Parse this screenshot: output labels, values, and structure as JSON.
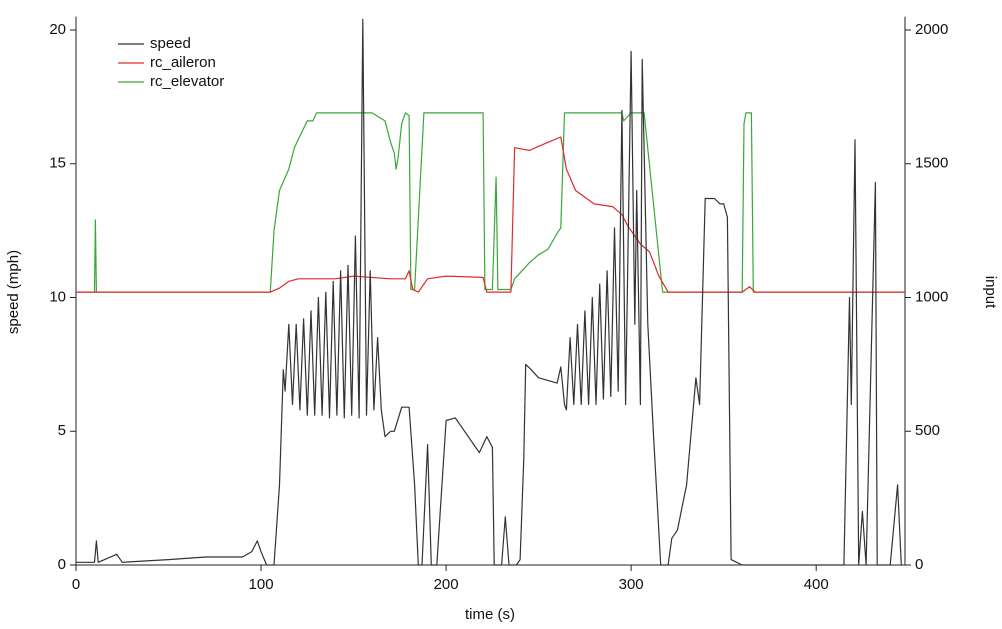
{
  "chart_data": {
    "type": "line",
    "xlabel": "time (s)",
    "ylabel": "speed (mph)",
    "y2label": "input",
    "xlim": [
      0,
      448
    ],
    "xticks": [
      0,
      100,
      200,
      300,
      400
    ],
    "ylim": [
      0,
      20.5
    ],
    "yticks": [
      0,
      5,
      10,
      15,
      20
    ],
    "y2lim": [
      0,
      2050
    ],
    "y2ticks": [
      0,
      500,
      1000,
      1500,
      2000
    ],
    "legend": "upper left",
    "series": [
      {
        "name": "speed",
        "color": "#333333",
        "x": [
          0,
          10,
          11,
          12,
          22,
          25,
          50,
          70,
          90,
          95,
          98,
          100,
          103,
          107,
          110,
          112,
          113,
          115,
          117,
          119,
          121,
          123,
          125,
          127,
          129,
          131,
          133,
          135,
          137,
          139,
          141,
          143,
          145,
          147,
          149,
          151,
          153,
          155,
          157,
          159,
          161,
          163,
          165,
          167,
          170,
          172,
          176,
          180,
          183,
          185,
          187,
          190,
          192,
          195,
          200,
          205,
          210,
          215,
          218,
          222,
          225,
          226,
          230,
          232,
          234,
          238,
          240,
          242,
          243,
          246,
          250,
          255,
          260,
          262,
          264,
          265,
          267,
          269,
          271,
          273,
          275,
          277,
          279,
          281,
          283,
          285,
          287,
          289,
          291,
          293,
          295,
          297,
          300,
          302,
          303,
          305,
          306,
          309,
          312,
          316,
          320,
          322,
          325,
          330,
          335,
          337,
          340,
          345,
          348,
          350,
          352,
          354,
          360,
          415,
          418,
          419,
          421,
          423,
          425,
          427,
          432,
          433,
          440,
          444,
          446
        ],
        "values": [
          0.1,
          0.1,
          0.9,
          0.1,
          0.4,
          0.1,
          0.2,
          0.3,
          0.3,
          0.5,
          0.9,
          0.5,
          0,
          0,
          3,
          7.3,
          6.5,
          9,
          6,
          9,
          5.8,
          9.2,
          5.6,
          9.5,
          5.6,
          10,
          5.6,
          10.2,
          5.5,
          10.6,
          5.6,
          11,
          5.5,
          11.2,
          5.6,
          12.3,
          5.5,
          20.4,
          5.6,
          11,
          5.8,
          8.5,
          5.8,
          4.8,
          5,
          5,
          5.9,
          5.9,
          3,
          0,
          0,
          4.5,
          0,
          0,
          5.4,
          5.5,
          5,
          4.5,
          4.2,
          4.8,
          4.4,
          0,
          0,
          1.8,
          0,
          0,
          0.2,
          4,
          7.5,
          7.3,
          7,
          6.9,
          6.8,
          7.4,
          6,
          5.8,
          8.5,
          6,
          9,
          6,
          9.5,
          6,
          10,
          6,
          10.5,
          6.2,
          11,
          6.3,
          12.6,
          6.5,
          17,
          6,
          19.2,
          9,
          14,
          6,
          18.9,
          9,
          5,
          0,
          0,
          1,
          1.3,
          3,
          7,
          6,
          13.7,
          13.7,
          13.5,
          13.5,
          13,
          0.2,
          0,
          0,
          10,
          6,
          15.9,
          0,
          2,
          0,
          14.3,
          0,
          0,
          3,
          0
        ]
      },
      {
        "name": "rc_aileron",
        "color": "#dd2c2c",
        "x": [
          0,
          105,
          110,
          115,
          120,
          140,
          150,
          170,
          178,
          180,
          182,
          185,
          190,
          200,
          220,
          222,
          235,
          237,
          245,
          255,
          262,
          265,
          270,
          280,
          290,
          295,
          298,
          302,
          305,
          310,
          315,
          320,
          360,
          364,
          367,
          448
        ],
        "values": [
          1020,
          1020,
          1035,
          1060,
          1070,
          1070,
          1080,
          1070,
          1070,
          1100,
          1030,
          1020,
          1070,
          1080,
          1075,
          1020,
          1020,
          1560,
          1550,
          1580,
          1600,
          1480,
          1400,
          1350,
          1340,
          1310,
          1270,
          1230,
          1200,
          1170,
          1080,
          1020,
          1020,
          1040,
          1020,
          1020
        ],
        "axis": "y2"
      },
      {
        "name": "rc_elevator",
        "color": "#3aa63a",
        "x": [
          0,
          10,
          10.5,
          11,
          105,
          107,
          110,
          115,
          118,
          120,
          125,
          128,
          130,
          160,
          167,
          170,
          172,
          173,
          174,
          176,
          178,
          180,
          181,
          183,
          188,
          220,
          221,
          225,
          227,
          228,
          235,
          237,
          245,
          250,
          255,
          260,
          262,
          264,
          295,
          296,
          300,
          307,
          317,
          360,
          361,
          362,
          365,
          366,
          448
        ],
        "values": [
          1020,
          1020,
          1290,
          1020,
          1020,
          1250,
          1400,
          1480,
          1560,
          1590,
          1660,
          1660,
          1690,
          1690,
          1660,
          1580,
          1540,
          1480,
          1520,
          1650,
          1690,
          1680,
          1030,
          1030,
          1690,
          1690,
          1030,
          1030,
          1450,
          1030,
          1030,
          1070,
          1130,
          1160,
          1180,
          1240,
          1260,
          1690,
          1690,
          1660,
          1690,
          1690,
          1020,
          1020,
          1650,
          1690,
          1690,
          1020,
          1020
        ],
        "axis": "y2"
      }
    ]
  }
}
